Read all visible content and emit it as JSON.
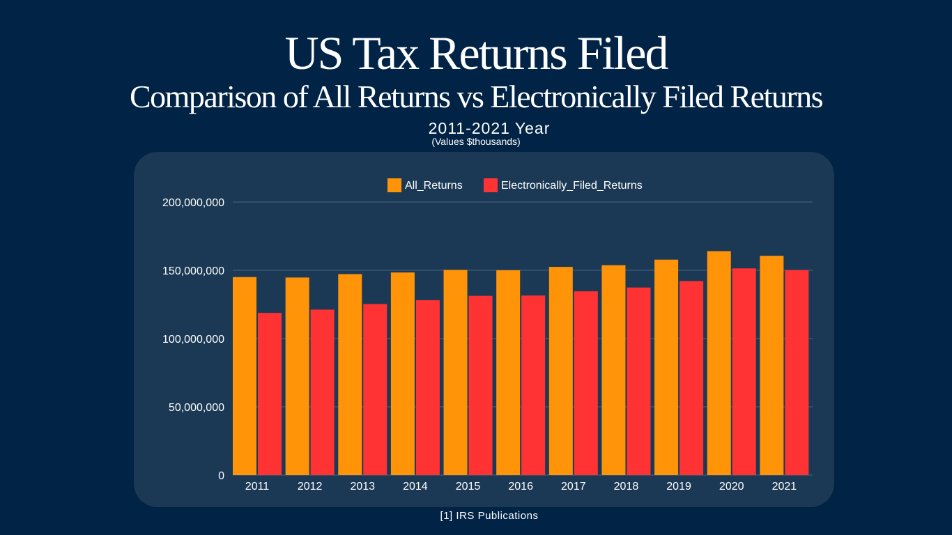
{
  "header": {
    "title": "US Tax Returns Filed",
    "subtitle": "Comparison of All Returns vs Electronically Filed Returns",
    "year_range": "2011-2021 Year",
    "values_note": "(Values $thousands)"
  },
  "footer": {
    "source": "[1] IRS  Publications"
  },
  "colors": {
    "background": "#012345",
    "panel": "#1b3955",
    "all_returns": "#ff9408",
    "electronically_filed": "#ff3333",
    "gridline": "#4a6580",
    "text": "#ffffff"
  },
  "chart_data": {
    "type": "bar",
    "categories": [
      "2011",
      "2012",
      "2013",
      "2014",
      "2015",
      "2016",
      "2017",
      "2018",
      "2019",
      "2020",
      "2021"
    ],
    "series": [
      {
        "name": "All_Returns",
        "color": "#ff9408",
        "values": [
          145000000,
          144700000,
          147200000,
          148400000,
          150300000,
          150000000,
          152500000,
          153700000,
          157800000,
          164000000,
          160600000
        ]
      },
      {
        "name": "Electronically_Filed_Returns",
        "color": "#ff3333",
        "values": [
          118800000,
          121200000,
          125300000,
          128100000,
          131300000,
          131500000,
          134600000,
          137400000,
          142100000,
          151400000,
          150100000
        ]
      }
    ],
    "ylim": [
      0,
      200000000
    ],
    "yticks": [
      0,
      50000000,
      100000000,
      150000000,
      200000000
    ],
    "ytick_labels": [
      "0",
      "50,000,000",
      "100,000,000",
      "150,000,000",
      "200,000,000"
    ],
    "grid": true,
    "legend": "top-center"
  }
}
